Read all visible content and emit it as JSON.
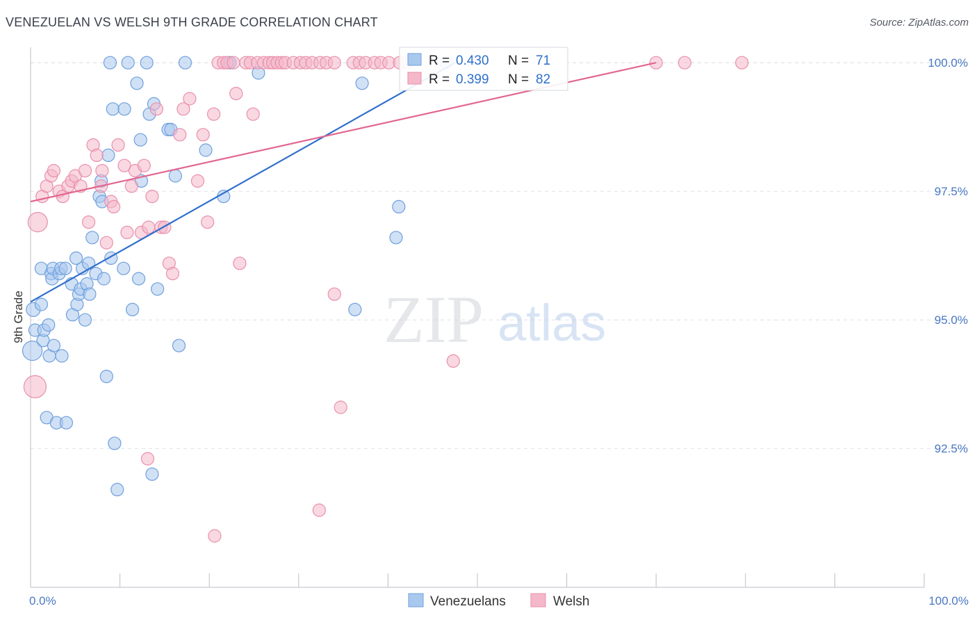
{
  "title": "VENEZUELAN VS WELSH 9TH GRADE CORRELATION CHART",
  "source": "Source: ZipAtlas.com",
  "watermark": {
    "zip": "ZIP",
    "atlas": "atlas"
  },
  "colors": {
    "blue": "#2f6fcc",
    "blue_fill": "#a9c8ee",
    "blue_stroke": "#6f9fdc",
    "pink": "#e2668f",
    "pink_fill": "#f4b8ca",
    "pink_stroke": "#e98fab",
    "tick": "#4a78c2",
    "grid": "#dde1e7"
  },
  "legend": {
    "r_label": "R =",
    "n_label": "N =",
    "rows": [
      {
        "r": "0.430",
        "n": "71"
      },
      {
        "r": "0.399",
        "n": "82"
      }
    ]
  },
  "chart_data": {
    "type": "scatter",
    "xlabel": "",
    "ylabel": "9th Grade",
    "xlim": [
      0,
      100
    ],
    "ylim": [
      89.8,
      100.3
    ],
    "x_tick_labels": [
      "0.0%",
      "100.0%"
    ],
    "y_ticks": [
      92.5,
      95.0,
      97.5,
      100.0
    ],
    "y_tick_labels": [
      "92.5%",
      "95.0%",
      "97.5%",
      "100.0%"
    ],
    "grid": "horizontal dashed",
    "legend_position": "top-center",
    "series": [
      {
        "name": "Venezuelans",
        "color": "blue",
        "trend": {
          "x0": 0,
          "y0": 95.35,
          "x1": 47.5,
          "y1": 100.0
        },
        "points": [
          [
            0.2,
            94.4,
            14
          ],
          [
            0.3,
            95.2,
            10
          ],
          [
            0.5,
            94.8,
            9
          ],
          [
            1.2,
            95.3,
            9
          ],
          [
            1.2,
            96.0,
            9
          ],
          [
            1.4,
            94.6,
            9
          ],
          [
            1.5,
            94.8,
            9
          ],
          [
            1.8,
            93.1,
            9
          ],
          [
            2.0,
            94.9,
            9
          ],
          [
            2.1,
            94.3,
            9
          ],
          [
            2.3,
            95.9,
            9
          ],
          [
            2.4,
            95.8,
            9
          ],
          [
            2.5,
            96.0,
            9
          ],
          [
            2.6,
            94.5,
            9
          ],
          [
            2.9,
            93.0,
            9
          ],
          [
            3.2,
            95.9,
            9
          ],
          [
            3.4,
            96.0,
            9
          ],
          [
            3.5,
            94.3,
            9
          ],
          [
            3.9,
            96.0,
            9
          ],
          [
            4.0,
            93.0,
            9
          ],
          [
            4.6,
            95.7,
            9
          ],
          [
            4.7,
            95.1,
            9
          ],
          [
            5.1,
            96.2,
            9
          ],
          [
            5.2,
            95.3,
            9
          ],
          [
            5.4,
            95.5,
            9
          ],
          [
            5.6,
            95.6,
            9
          ],
          [
            5.8,
            96.0,
            9
          ],
          [
            6.1,
            95.0,
            9
          ],
          [
            6.3,
            95.7,
            9
          ],
          [
            6.5,
            96.1,
            9
          ],
          [
            6.6,
            95.5,
            9
          ],
          [
            6.9,
            96.6,
            9
          ],
          [
            7.3,
            95.9,
            9
          ],
          [
            7.7,
            97.4,
            9
          ],
          [
            7.9,
            97.7,
            9
          ],
          [
            8.0,
            97.3,
            9
          ],
          [
            8.2,
            95.8,
            9
          ],
          [
            8.5,
            93.9,
            9
          ],
          [
            8.7,
            98.2,
            9
          ],
          [
            8.9,
            100.0,
            9
          ],
          [
            9.0,
            96.2,
            9
          ],
          [
            9.2,
            99.1,
            9
          ],
          [
            9.4,
            92.6,
            9
          ],
          [
            9.7,
            91.7,
            9
          ],
          [
            10.4,
            96.0,
            9
          ],
          [
            10.5,
            99.1,
            9
          ],
          [
            10.9,
            100.0,
            9
          ],
          [
            11.4,
            95.2,
            9
          ],
          [
            11.9,
            99.6,
            9
          ],
          [
            12.1,
            95.8,
            9
          ],
          [
            12.3,
            98.5,
            9
          ],
          [
            12.4,
            97.7,
            9
          ],
          [
            13.0,
            100.0,
            9
          ],
          [
            13.3,
            99.0,
            9
          ],
          [
            13.6,
            92.0,
            9
          ],
          [
            13.8,
            99.2,
            9
          ],
          [
            14.2,
            95.6,
            9
          ],
          [
            15.4,
            98.7,
            9
          ],
          [
            15.7,
            98.7,
            9
          ],
          [
            16.2,
            97.8,
            9
          ],
          [
            16.6,
            94.5,
            9
          ],
          [
            17.3,
            100.0,
            9
          ],
          [
            19.6,
            98.3,
            9
          ],
          [
            21.6,
            97.4,
            9
          ],
          [
            22.3,
            100.0,
            9
          ],
          [
            25.5,
            99.8,
            9
          ],
          [
            36.3,
            95.2,
            9
          ],
          [
            37.1,
            99.6,
            9
          ],
          [
            40.9,
            96.6,
            9
          ],
          [
            41.2,
            97.2,
            9
          ],
          [
            46.5,
            100.0,
            9
          ]
        ]
      },
      {
        "name": "Welsh",
        "color": "pink",
        "trend": {
          "x0": 0,
          "y0": 97.3,
          "x1": 70.0,
          "y1": 100.0
        },
        "points": [
          [
            0.5,
            93.7,
            16
          ],
          [
            0.8,
            96.9,
            14
          ],
          [
            1.3,
            97.4,
            9
          ],
          [
            1.8,
            97.6,
            9
          ],
          [
            2.3,
            97.8,
            9
          ],
          [
            2.6,
            97.9,
            9
          ],
          [
            3.2,
            97.5,
            9
          ],
          [
            3.6,
            97.4,
            9
          ],
          [
            4.2,
            97.6,
            9
          ],
          [
            4.6,
            97.7,
            9
          ],
          [
            5.0,
            97.8,
            9
          ],
          [
            5.6,
            97.6,
            9
          ],
          [
            6.1,
            97.9,
            9
          ],
          [
            6.5,
            96.9,
            9
          ],
          [
            7.0,
            98.4,
            9
          ],
          [
            7.4,
            98.2,
            9
          ],
          [
            7.9,
            97.6,
            9
          ],
          [
            8.0,
            97.9,
            9
          ],
          [
            8.5,
            96.5,
            9
          ],
          [
            9.0,
            97.3,
            9
          ],
          [
            9.3,
            97.2,
            9
          ],
          [
            9.8,
            98.4,
            9
          ],
          [
            10.5,
            98.0,
            9
          ],
          [
            10.8,
            96.7,
            9
          ],
          [
            11.3,
            97.6,
            9
          ],
          [
            11.7,
            97.9,
            9
          ],
          [
            12.4,
            96.7,
            9
          ],
          [
            12.7,
            98.0,
            9
          ],
          [
            13.2,
            96.8,
            9
          ],
          [
            13.6,
            97.4,
            9
          ],
          [
            14.1,
            99.1,
            9
          ],
          [
            14.6,
            96.8,
            9
          ],
          [
            15.0,
            96.8,
            9
          ],
          [
            15.5,
            96.1,
            9
          ],
          [
            15.9,
            95.9,
            9
          ],
          [
            16.7,
            98.6,
            9
          ],
          [
            17.1,
            99.1,
            9
          ],
          [
            17.8,
            99.3,
            9
          ],
          [
            18.7,
            97.7,
            9
          ],
          [
            19.3,
            98.6,
            9
          ],
          [
            19.8,
            96.9,
            9
          ],
          [
            20.5,
            99.0,
            9
          ],
          [
            21.0,
            100.0,
            9
          ],
          [
            21.6,
            100.0,
            9
          ],
          [
            22.0,
            100.0,
            9
          ],
          [
            22.7,
            100.0,
            9
          ],
          [
            23.0,
            99.4,
            9
          ],
          [
            23.4,
            96.1,
            9
          ],
          [
            24.1,
            100.0,
            9
          ],
          [
            24.6,
            100.0,
            9
          ],
          [
            24.9,
            99.0,
            9
          ],
          [
            25.4,
            100.0,
            9
          ],
          [
            26.1,
            100.0,
            9
          ],
          [
            26.7,
            100.0,
            9
          ],
          [
            27.1,
            100.0,
            9
          ],
          [
            27.6,
            100.0,
            9
          ],
          [
            28.1,
            100.0,
            9
          ],
          [
            28.5,
            100.0,
            9
          ],
          [
            29.4,
            100.0,
            9
          ],
          [
            30.2,
            100.0,
            9
          ],
          [
            30.8,
            100.0,
            9
          ],
          [
            31.5,
            100.0,
            9
          ],
          [
            32.4,
            100.0,
            9
          ],
          [
            33.1,
            100.0,
            9
          ],
          [
            34.0,
            100.0,
            9
          ],
          [
            36.1,
            100.0,
            9
          ],
          [
            36.8,
            100.0,
            9
          ],
          [
            37.5,
            100.0,
            9
          ],
          [
            38.5,
            100.0,
            9
          ],
          [
            39.2,
            100.0,
            9
          ],
          [
            40.1,
            100.0,
            9
          ],
          [
            41.3,
            100.0,
            9
          ],
          [
            42.1,
            100.0,
            9
          ],
          [
            32.3,
            91.3,
            9
          ],
          [
            34.0,
            95.5,
            9
          ],
          [
            34.7,
            93.3,
            9
          ],
          [
            20.6,
            90.8,
            9
          ],
          [
            13.1,
            92.3,
            9
          ],
          [
            47.3,
            94.2,
            9
          ],
          [
            70.0,
            100.0,
            9
          ],
          [
            73.2,
            100.0,
            9
          ],
          [
            79.6,
            100.0,
            9
          ]
        ]
      }
    ]
  },
  "bottom_legend": [
    {
      "label": "Venezuelans",
      "color": "blue"
    },
    {
      "label": "Welsh",
      "color": "pink"
    }
  ]
}
